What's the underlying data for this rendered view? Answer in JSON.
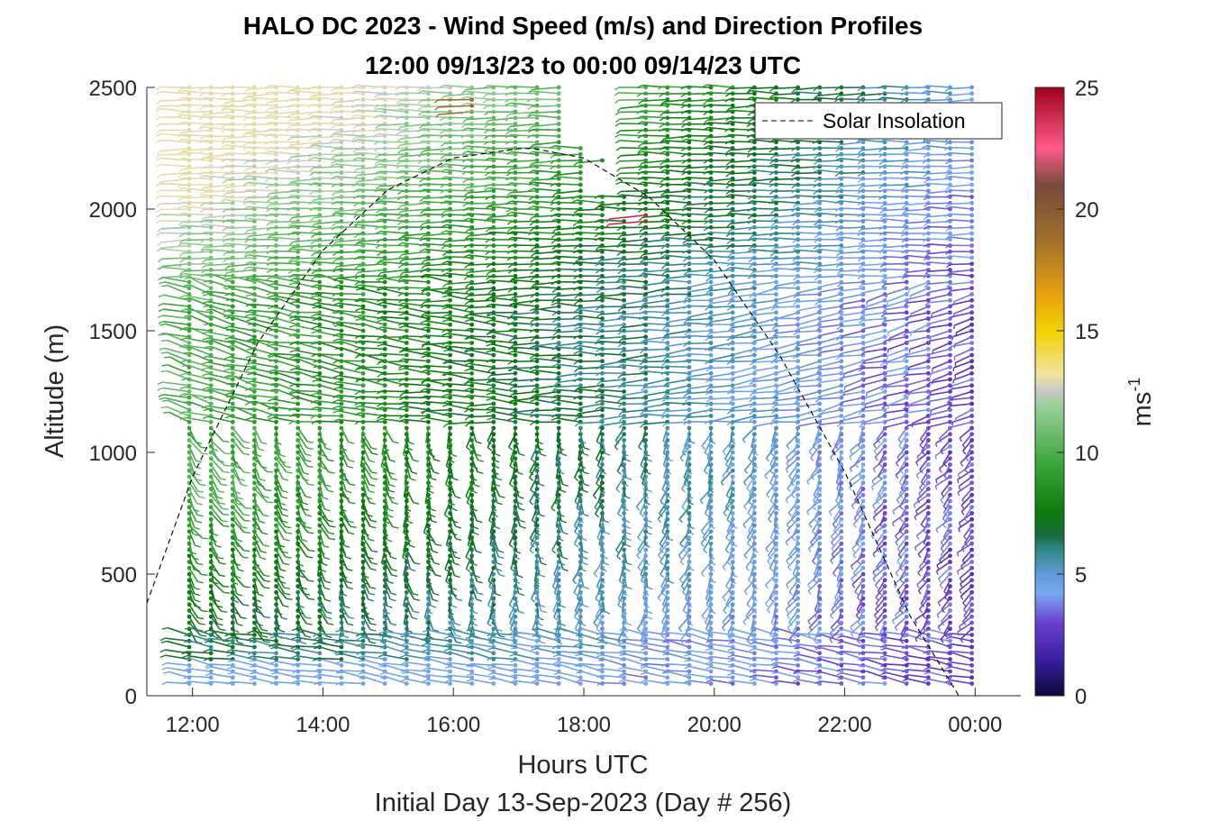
{
  "chart_data": {
    "type": "wind-barb-profile",
    "title_line1": "HALO DC 2023 - Wind Speed (m/s) and Direction Profiles",
    "title_line2": "12:00 09/13/23 to 00:00 09/14/23  UTC",
    "xlabel": "Hours UTC",
    "subtitle": "Initial Day 13-Sep-2023 (Day # 256)",
    "ylabel": "Altitude (m)",
    "x_ticks": [
      "12:00",
      "14:00",
      "16:00",
      "18:00",
      "20:00",
      "22:00",
      "00:00"
    ],
    "x_tick_hours": [
      12,
      14,
      16,
      18,
      20,
      22,
      24
    ],
    "xlim_hours": [
      11.3,
      24.7
    ],
    "y_ticks": [
      "0",
      "500",
      "1000",
      "1500",
      "2000",
      "2500"
    ],
    "y_tick_values": [
      0,
      500,
      1000,
      1500,
      2000,
      2500
    ],
    "ylim": [
      0,
      2500
    ],
    "profile_times_hours_start": 11.95,
    "profile_times_hours_step": 0.3333,
    "profile_count": 37,
    "altitude_step_m": 25,
    "colorbar": {
      "label": "ms",
      "label_exponent": "-1",
      "range": [
        0,
        25
      ],
      "ticks": [
        "0",
        "5",
        "10",
        "15",
        "20",
        "25"
      ],
      "tick_values": [
        0,
        5,
        10,
        15,
        20,
        25
      ],
      "colors": [
        [
          0,
          "#0a0a3c"
        ],
        [
          1.5,
          "#3b1fa0"
        ],
        [
          3,
          "#6a3fd0"
        ],
        [
          4.2,
          "#7aa8f2"
        ],
        [
          5,
          "#5f9ad8"
        ],
        [
          6,
          "#2e8a8a"
        ],
        [
          6.6,
          "#1a6a3a"
        ],
        [
          7.5,
          "#0a7a0a"
        ],
        [
          9.5,
          "#3aa63a"
        ],
        [
          12,
          "#9ed09e"
        ],
        [
          12.5,
          "#c8c8c8"
        ],
        [
          13.2,
          "#f0e4a0"
        ],
        [
          15,
          "#f2d200"
        ],
        [
          16.5,
          "#e8a010"
        ],
        [
          19,
          "#9a6a30"
        ],
        [
          21,
          "#7a4a3a"
        ],
        [
          22.5,
          "#ff5a8a"
        ],
        [
          25,
          "#a0001a"
        ]
      ]
    },
    "legend": {
      "label": "Solar Insolation",
      "placement": "top-right"
    },
    "solar_insolation": {
      "style": "dashed",
      "peak_time_hours": 17.2,
      "peak_altitude_m": 2250,
      "zero_time_hours": 23.75,
      "x_hours": [
        11.3,
        12,
        13,
        14,
        15,
        16,
        17,
        17.2,
        18,
        19,
        20,
        21,
        22,
        23,
        23.75,
        24.7
      ],
      "y_m": [
        380,
        900,
        1450,
        1830,
        2080,
        2210,
        2248,
        2250,
        2210,
        2050,
        1790,
        1400,
        920,
        330,
        0,
        0
      ]
    }
  }
}
